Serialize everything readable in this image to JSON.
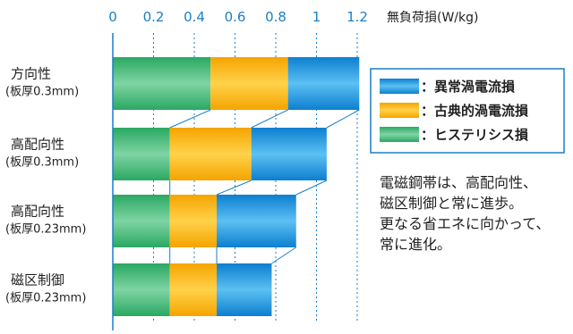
{
  "chart_data": {
    "type": "bar",
    "orientation": "horizontal",
    "stacked": true,
    "x_unit_label": "無負荷損(W/kg)",
    "xlim": [
      0,
      1.2
    ],
    "xticks": [
      "0",
      "0.2",
      "0.4",
      "0.6",
      "0.8",
      "1",
      "1.2"
    ],
    "grid": true,
    "legend_position": "right",
    "categories": [
      {
        "name": "方向性",
        "sub": "(板厚0.3mm)"
      },
      {
        "name": "高配向性",
        "sub": "(板厚0.3mm)"
      },
      {
        "name": "高配向性",
        "sub": "(板厚0.23mm)"
      },
      {
        "name": "磁区制御",
        "sub": "(板厚0.23mm)"
      }
    ],
    "series": [
      {
        "name": "ヒステリシス損",
        "color": "#3db87a",
        "values": [
          0.48,
          0.28,
          0.28,
          0.28
        ]
      },
      {
        "name": "古典的渦電流損",
        "color": "#f7b000",
        "values": [
          0.38,
          0.4,
          0.23,
          0.23
        ]
      },
      {
        "name": "異常渦電流損",
        "color": "#1a8fd6",
        "values": [
          0.35,
          0.37,
          0.39,
          0.27
        ]
      }
    ],
    "legend": [
      {
        "label": "：異常渦電流損",
        "color": "#1a8fd6"
      },
      {
        "label": "：古典的渦電流損",
        "color": "#f7b000"
      },
      {
        "label": "：ヒステリシス損",
        "color": "#3db87a"
      }
    ]
  },
  "note": {
    "lines": [
      "電磁鋼帯は、高配向性、",
      "磁区制御と常に進歩。",
      "更なる省エネに向かって、",
      "常に進化。"
    ]
  }
}
